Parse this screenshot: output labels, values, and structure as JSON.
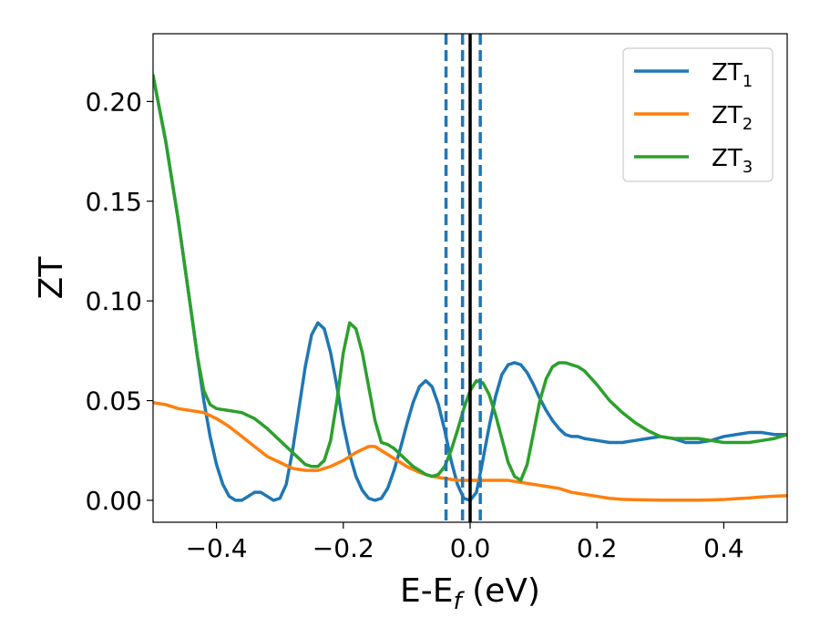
{
  "chart_data": {
    "type": "line",
    "xlabel": {
      "main": "E-E",
      "sub": "f",
      "tail": " (eV)"
    },
    "ylabel": "ZT",
    "xlim": [
      -0.5,
      0.5
    ],
    "ylim": [
      -0.011,
      0.234
    ],
    "xticks": [
      -0.4,
      -0.2,
      0.0,
      0.2,
      0.4
    ],
    "xtick_labels": [
      "−0.4",
      "−0.2",
      "0.0",
      "0.2",
      "0.4"
    ],
    "yticks": [
      0.0,
      0.05,
      0.1,
      0.15,
      0.2
    ],
    "ytick_labels": [
      "0.00",
      "0.05",
      "0.10",
      "0.15",
      "0.20"
    ],
    "grid": false,
    "legend_position": "top-right",
    "vlines": [
      {
        "x": -0.038,
        "style": "dashed",
        "color": "#1f77b4"
      },
      {
        "x": -0.012,
        "style": "dashed",
        "color": "#1f77b4"
      },
      {
        "x": 0.016,
        "style": "dashed",
        "color": "#1f77b4"
      },
      {
        "x": 0.0,
        "style": "solid",
        "color": "#000000"
      }
    ],
    "series": [
      {
        "name": "ZT",
        "sub": "1",
        "color": "#1f77b4",
        "x": [
          -0.5,
          -0.48,
          -0.46,
          -0.44,
          -0.43,
          -0.42,
          -0.41,
          -0.4,
          -0.39,
          -0.38,
          -0.37,
          -0.36,
          -0.35,
          -0.34,
          -0.33,
          -0.32,
          -0.31,
          -0.3,
          -0.29,
          -0.28,
          -0.27,
          -0.26,
          -0.25,
          -0.24,
          -0.23,
          -0.22,
          -0.21,
          -0.2,
          -0.19,
          -0.18,
          -0.17,
          -0.16,
          -0.15,
          -0.14,
          -0.13,
          -0.12,
          -0.11,
          -0.1,
          -0.09,
          -0.08,
          -0.07,
          -0.06,
          -0.05,
          -0.04,
          -0.03,
          -0.02,
          -0.01,
          0.0,
          0.01,
          0.02,
          0.03,
          0.04,
          0.05,
          0.06,
          0.07,
          0.08,
          0.09,
          0.1,
          0.11,
          0.12,
          0.13,
          0.14,
          0.15,
          0.16,
          0.17,
          0.18,
          0.2,
          0.22,
          0.24,
          0.26,
          0.28,
          0.3,
          0.32,
          0.34,
          0.36,
          0.38,
          0.4,
          0.42,
          0.44,
          0.46,
          0.48,
          0.5
        ],
        "y": [
          0.213,
          0.18,
          0.14,
          0.095,
          0.072,
          0.05,
          0.032,
          0.018,
          0.008,
          0.002,
          0.0,
          0.0,
          0.002,
          0.004,
          0.004,
          0.002,
          0.0,
          0.001,
          0.008,
          0.025,
          0.046,
          0.067,
          0.083,
          0.089,
          0.086,
          0.074,
          0.057,
          0.038,
          0.023,
          0.012,
          0.005,
          0.001,
          0.0,
          0.001,
          0.006,
          0.015,
          0.026,
          0.038,
          0.049,
          0.057,
          0.06,
          0.057,
          0.048,
          0.035,
          0.02,
          0.008,
          0.001,
          0.0,
          0.004,
          0.02,
          0.037,
          0.052,
          0.063,
          0.068,
          0.069,
          0.068,
          0.064,
          0.058,
          0.051,
          0.045,
          0.04,
          0.036,
          0.033,
          0.032,
          0.032,
          0.031,
          0.03,
          0.029,
          0.029,
          0.03,
          0.031,
          0.032,
          0.031,
          0.029,
          0.029,
          0.03,
          0.032,
          0.033,
          0.034,
          0.034,
          0.033,
          0.033
        ]
      },
      {
        "name": "ZT",
        "sub": "2",
        "color": "#ff7f0e",
        "x": [
          -0.5,
          -0.48,
          -0.46,
          -0.44,
          -0.42,
          -0.4,
          -0.38,
          -0.36,
          -0.34,
          -0.32,
          -0.3,
          -0.28,
          -0.26,
          -0.24,
          -0.22,
          -0.2,
          -0.18,
          -0.16,
          -0.15,
          -0.14,
          -0.12,
          -0.1,
          -0.08,
          -0.06,
          -0.04,
          -0.02,
          0.0,
          0.02,
          0.04,
          0.06,
          0.08,
          0.1,
          0.12,
          0.14,
          0.16,
          0.18,
          0.2,
          0.22,
          0.24,
          0.26,
          0.28,
          0.3,
          0.32,
          0.34,
          0.36,
          0.38,
          0.4,
          0.42,
          0.44,
          0.46,
          0.48,
          0.5
        ],
        "y": [
          0.049,
          0.048,
          0.046,
          0.045,
          0.044,
          0.041,
          0.037,
          0.032,
          0.027,
          0.022,
          0.019,
          0.016,
          0.015,
          0.015,
          0.017,
          0.02,
          0.024,
          0.027,
          0.027,
          0.025,
          0.021,
          0.017,
          0.014,
          0.012,
          0.011,
          0.01,
          0.01,
          0.01,
          0.01,
          0.01,
          0.009,
          0.008,
          0.007,
          0.006,
          0.004,
          0.003,
          0.002,
          0.001,
          0.0005,
          0.0003,
          0.0002,
          0.0001,
          0.0001,
          0.0001,
          0.0001,
          0.0002,
          0.0004,
          0.0008,
          0.0012,
          0.0017,
          0.0021,
          0.0023
        ]
      },
      {
        "name": "ZT",
        "sub": "3",
        "color": "#2ca02c",
        "x": [
          -0.5,
          -0.48,
          -0.46,
          -0.44,
          -0.43,
          -0.42,
          -0.41,
          -0.4,
          -0.38,
          -0.36,
          -0.34,
          -0.32,
          -0.3,
          -0.28,
          -0.26,
          -0.25,
          -0.24,
          -0.23,
          -0.22,
          -0.21,
          -0.2,
          -0.19,
          -0.18,
          -0.17,
          -0.16,
          -0.15,
          -0.14,
          -0.13,
          -0.12,
          -0.11,
          -0.1,
          -0.09,
          -0.08,
          -0.07,
          -0.06,
          -0.05,
          -0.04,
          -0.03,
          -0.02,
          -0.01,
          0.0,
          0.01,
          0.02,
          0.03,
          0.04,
          0.05,
          0.06,
          0.07,
          0.08,
          0.09,
          0.1,
          0.11,
          0.12,
          0.13,
          0.14,
          0.15,
          0.16,
          0.17,
          0.18,
          0.2,
          0.22,
          0.24,
          0.26,
          0.28,
          0.3,
          0.32,
          0.34,
          0.36,
          0.38,
          0.4,
          0.42,
          0.44,
          0.46,
          0.48,
          0.5
        ],
        "y": [
          0.213,
          0.18,
          0.14,
          0.095,
          0.072,
          0.055,
          0.048,
          0.046,
          0.045,
          0.044,
          0.041,
          0.036,
          0.03,
          0.024,
          0.018,
          0.017,
          0.017,
          0.02,
          0.03,
          0.05,
          0.074,
          0.089,
          0.086,
          0.074,
          0.057,
          0.04,
          0.029,
          0.028,
          0.026,
          0.023,
          0.02,
          0.017,
          0.015,
          0.013,
          0.012,
          0.013,
          0.017,
          0.025,
          0.035,
          0.046,
          0.055,
          0.06,
          0.059,
          0.053,
          0.043,
          0.031,
          0.019,
          0.012,
          0.01,
          0.018,
          0.034,
          0.05,
          0.061,
          0.067,
          0.069,
          0.069,
          0.068,
          0.067,
          0.065,
          0.058,
          0.05,
          0.044,
          0.039,
          0.035,
          0.032,
          0.031,
          0.031,
          0.031,
          0.03,
          0.029,
          0.029,
          0.029,
          0.03,
          0.031,
          0.033
        ]
      }
    ]
  }
}
